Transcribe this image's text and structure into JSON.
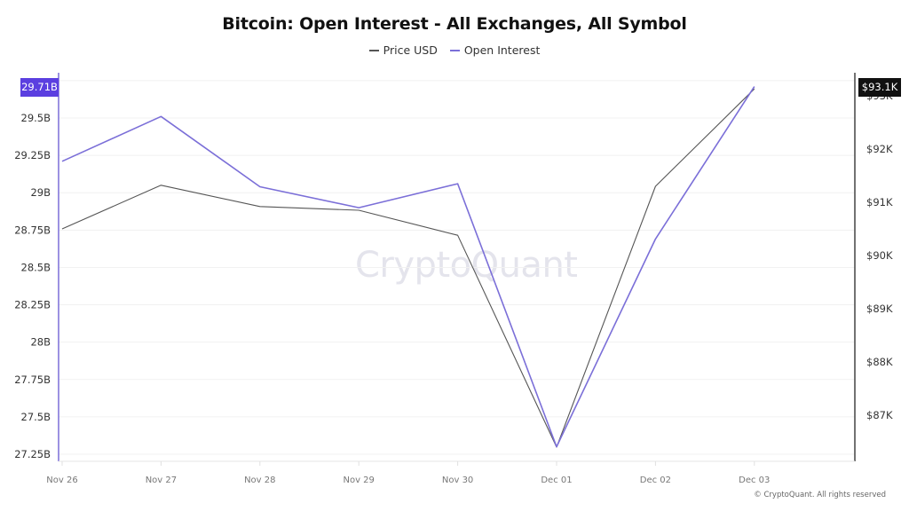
{
  "header": {
    "title": "Bitcoin: Open Interest - All Exchanges, All Symbol"
  },
  "legend": [
    {
      "label": "Price USD",
      "color": "#555555"
    },
    {
      "label": "Open Interest",
      "color": "#7b6fd8"
    }
  ],
  "watermark": "CryptoQuant",
  "copyright": "© CryptoQuant. All rights reserved",
  "badges": {
    "left": "29.71B",
    "right": "$93.1K"
  },
  "colors": {
    "open_interest": "#7b6fd8",
    "price": "#555555",
    "left_axis": "#7b6fd8",
    "right_axis": "#333333",
    "left_badge": "#5b3fe0",
    "right_badge": "#111111",
    "grid": "#f1f1f1"
  },
  "chart_data": {
    "type": "line",
    "title": "Bitcoin: Open Interest - All Exchanges, All Symbol",
    "x": [
      "Nov 26",
      "Nov 27",
      "Nov 28",
      "Nov 29",
      "Nov 30",
      "Dec 01",
      "Dec 02",
      "Dec 03"
    ],
    "series": [
      {
        "name": "Price USD",
        "axis": "right",
        "unit": "USD",
        "values": [
          90500,
          91320,
          90920,
          90850,
          90380,
          86400,
          91300,
          93130
        ]
      },
      {
        "name": "Open Interest",
        "axis": "left",
        "unit": "B",
        "values": [
          29.21,
          29.51,
          29.04,
          28.9,
          29.06,
          27.3,
          28.69,
          29.71
        ]
      }
    ],
    "left_axis": {
      "ticks": [
        "27.25B",
        "27.5B",
        "27.75B",
        "28B",
        "28.25B",
        "28.5B",
        "28.75B",
        "29B",
        "29.25B",
        "29.5B"
      ],
      "tick_values": [
        27.25,
        27.5,
        27.75,
        28,
        28.25,
        28.5,
        28.75,
        29,
        29.25,
        29.5
      ],
      "ylim": [
        27.2,
        29.78
      ],
      "current_value_label": "29.71B"
    },
    "right_axis": {
      "ticks": [
        "$87K",
        "$88K",
        "$89K",
        "$90K",
        "$91K",
        "$92K",
        "$93K"
      ],
      "tick_values": [
        87000,
        88000,
        89000,
        90000,
        91000,
        92000,
        93000
      ],
      "current_value_label": "$93.1K"
    },
    "xlabel": "",
    "ylabel": "",
    "grid": true,
    "legend_position": "top-center"
  }
}
